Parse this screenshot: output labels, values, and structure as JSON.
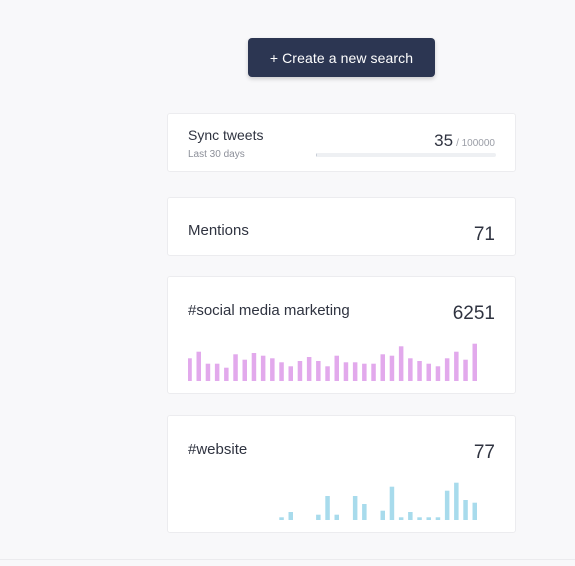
{
  "create_button": {
    "plus": "+",
    "label": "Create a new search"
  },
  "sync": {
    "title": "Sync tweets",
    "period": "Last 30 days",
    "count": "35",
    "limit": "/ 100000",
    "progress_fraction": 0.00035
  },
  "mentions": {
    "title": "Mentions",
    "count": "71"
  },
  "searches": [
    {
      "title": "#social media marketing",
      "count": "6251",
      "bar_color": "#e2a9ec",
      "activity": [
        17,
        22,
        13,
        13,
        10,
        20,
        16,
        21,
        19,
        17,
        14,
        11,
        15,
        18,
        15,
        11,
        19,
        14,
        14,
        13,
        13,
        20,
        19,
        26,
        17,
        15,
        13,
        11,
        17,
        22,
        16,
        28
      ]
    },
    {
      "title": "#website",
      "count": "77",
      "bar_color": "#a8dbec",
      "activity": [
        0,
        2,
        6,
        0,
        0,
        4,
        18,
        4,
        0,
        18,
        12,
        0,
        7,
        25,
        2,
        6,
        2,
        2,
        2,
        22,
        28,
        15,
        13
      ]
    }
  ]
}
